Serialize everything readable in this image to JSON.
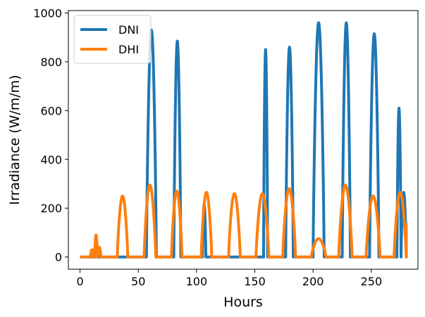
{
  "chart_data": {
    "type": "line",
    "title": "",
    "xlabel": "Hours",
    "ylabel": "Irradiance (W/m/m)",
    "xlim": [
      -10,
      290
    ],
    "ylim": [
      -50,
      1010
    ],
    "xticks": [
      0,
      50,
      100,
      150,
      200,
      250
    ],
    "yticks": [
      0,
      200,
      400,
      600,
      800,
      1000
    ],
    "grid": false,
    "legend_position": "top-left",
    "series": [
      {
        "name": "DNI",
        "color": "#1f77b4",
        "pulses": [
          {
            "start": 13.0,
            "end": 15.5,
            "peak": 30
          },
          {
            "start": 57.0,
            "end": 65.5,
            "peak": 930
          },
          {
            "start": 80.5,
            "end": 86.5,
            "peak": 885
          },
          {
            "start": 105.0,
            "end": 108.0,
            "peak": 215
          },
          {
            "start": 157.5,
            "end": 161.0,
            "peak": 850
          },
          {
            "start": 176.5,
            "end": 183.0,
            "peak": 860
          },
          {
            "start": 200.0,
            "end": 209.5,
            "peak": 960
          },
          {
            "start": 225.0,
            "end": 232.0,
            "peak": 960
          },
          {
            "start": 248.5,
            "end": 256.5,
            "peak": 915
          },
          {
            "start": 272.0,
            "end": 275.5,
            "peak": 610
          },
          {
            "start": 275.5,
            "end": 280.0,
            "peak": 265
          }
        ],
        "x": [
          0,
          280
        ],
        "y": [
          0,
          40
        ]
      },
      {
        "name": "DHI",
        "color": "#ff7f0e",
        "pulses": [
          {
            "start": 9.0,
            "end": 11.5,
            "peak": 30
          },
          {
            "start": 12.5,
            "end": 15.0,
            "peak": 90
          },
          {
            "start": 15.0,
            "end": 18.0,
            "peak": 40
          },
          {
            "start": 32.0,
            "end": 41.0,
            "peak": 250
          },
          {
            "start": 55.0,
            "end": 65.0,
            "peak": 295
          },
          {
            "start": 78.5,
            "end": 87.5,
            "peak": 270
          },
          {
            "start": 104.0,
            "end": 113.0,
            "peak": 265
          },
          {
            "start": 127.5,
            "end": 137.5,
            "peak": 260
          },
          {
            "start": 151.0,
            "end": 162.0,
            "peak": 260
          },
          {
            "start": 174.0,
            "end": 185.0,
            "peak": 280
          },
          {
            "start": 198.5,
            "end": 211.0,
            "peak": 75
          },
          {
            "start": 222.0,
            "end": 233.5,
            "peak": 295
          },
          {
            "start": 245.5,
            "end": 257.5,
            "peak": 250
          },
          {
            "start": 269.5,
            "end": 280.0,
            "peak": 265
          }
        ],
        "x": [
          0,
          280
        ],
        "y": [
          0,
          140
        ]
      }
    ]
  }
}
